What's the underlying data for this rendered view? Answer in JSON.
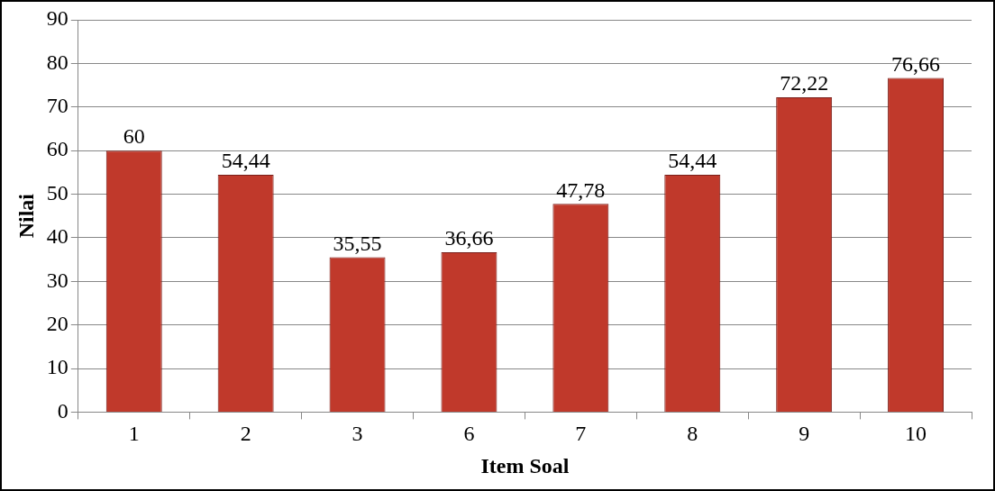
{
  "chart_data": {
    "type": "bar",
    "xlabel": "Item Soal",
    "ylabel": "Nilai",
    "categories": [
      "1",
      "2",
      "3",
      "6",
      "7",
      "8",
      "9",
      "10"
    ],
    "values": [
      60,
      54.44,
      35.55,
      36.66,
      47.78,
      54.44,
      72.22,
      76.66
    ],
    "value_labels": [
      "60",
      "54,44",
      "35,55",
      "36,66",
      "47,78",
      "54,44",
      "72,22",
      "76,66"
    ],
    "color": "#c0392b",
    "ylim": [
      0,
      90
    ],
    "yticks": [
      0,
      10,
      20,
      30,
      40,
      50,
      60,
      70,
      80,
      90
    ],
    "grid": "y",
    "legend": false
  }
}
